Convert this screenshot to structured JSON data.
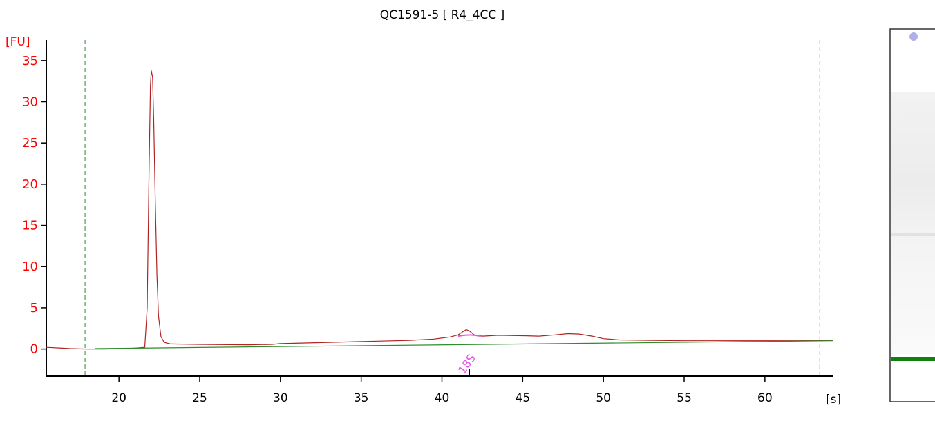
{
  "chart_data": {
    "type": "line",
    "title": "QC1591-5  [ R4_4CC ]",
    "ylabel": "[FU]",
    "xlabel": "[s]",
    "xlim": [
      15.5,
      64.2
    ],
    "ylim": [
      -3.3,
      37.5
    ],
    "x_ticks": [
      20,
      25,
      30,
      35,
      40,
      45,
      50,
      55,
      60
    ],
    "x_tick_labels": [
      "20",
      "25",
      "30",
      "35",
      "40",
      "45",
      "50",
      "55",
      "60"
    ],
    "y_ticks": [
      0,
      5,
      10,
      15,
      20,
      25,
      30,
      35
    ],
    "y_tick_labels": [
      "0",
      "5",
      "10",
      "15",
      "20",
      "25",
      "30",
      "35"
    ],
    "grid": false,
    "legend": "none",
    "markers": [
      17.9,
      63.4
    ],
    "series": [
      {
        "color": "#b22222",
        "points": [
          [
            15.5,
            0.2
          ],
          [
            16.5,
            0.1
          ],
          [
            17.0,
            0.05
          ],
          [
            18.0,
            0.0
          ],
          [
            19.0,
            0.0
          ],
          [
            20.5,
            0.05
          ],
          [
            21.0,
            0.1
          ],
          [
            21.6,
            0.2
          ],
          [
            21.75,
            5.0
          ],
          [
            21.85,
            20.0
          ],
          [
            21.95,
            32.0
          ],
          [
            22.0,
            33.8
          ],
          [
            22.08,
            33.0
          ],
          [
            22.15,
            28.0
          ],
          [
            22.25,
            18.0
          ],
          [
            22.35,
            9.0
          ],
          [
            22.45,
            4.0
          ],
          [
            22.6,
            1.5
          ],
          [
            22.8,
            0.8
          ],
          [
            23.2,
            0.6
          ],
          [
            25.0,
            0.55
          ],
          [
            28.0,
            0.5
          ],
          [
            29.5,
            0.55
          ],
          [
            30.0,
            0.65
          ],
          [
            33.0,
            0.8
          ],
          [
            36.0,
            0.95
          ],
          [
            38.0,
            1.05
          ],
          [
            39.5,
            1.2
          ],
          [
            40.5,
            1.45
          ],
          [
            41.0,
            1.7
          ],
          [
            41.3,
            2.1
          ],
          [
            41.5,
            2.35
          ],
          [
            41.7,
            2.2
          ],
          [
            42.0,
            1.7
          ],
          [
            42.5,
            1.55
          ],
          [
            43.5,
            1.65
          ],
          [
            45.0,
            1.6
          ],
          [
            46.0,
            1.55
          ],
          [
            47.0,
            1.7
          ],
          [
            47.8,
            1.85
          ],
          [
            48.5,
            1.8
          ],
          [
            49.3,
            1.55
          ],
          [
            50.0,
            1.25
          ],
          [
            51.0,
            1.1
          ],
          [
            53.0,
            1.05
          ],
          [
            55.0,
            1.0
          ],
          [
            58.0,
            1.0
          ],
          [
            62.0,
            1.0
          ],
          [
            64.2,
            1.05
          ]
        ]
      },
      {
        "color": "#2e8b2e",
        "points": [
          [
            18.5,
            0.05
          ],
          [
            64.2,
            1.0
          ]
        ]
      }
    ],
    "peak_annotations": [
      {
        "x": 41.7,
        "label": "18S",
        "color": "#e455e4"
      }
    ]
  },
  "gel": {
    "marker_color": "#b0b0e8",
    "band_color": "#108010",
    "band_level": 0.86
  }
}
